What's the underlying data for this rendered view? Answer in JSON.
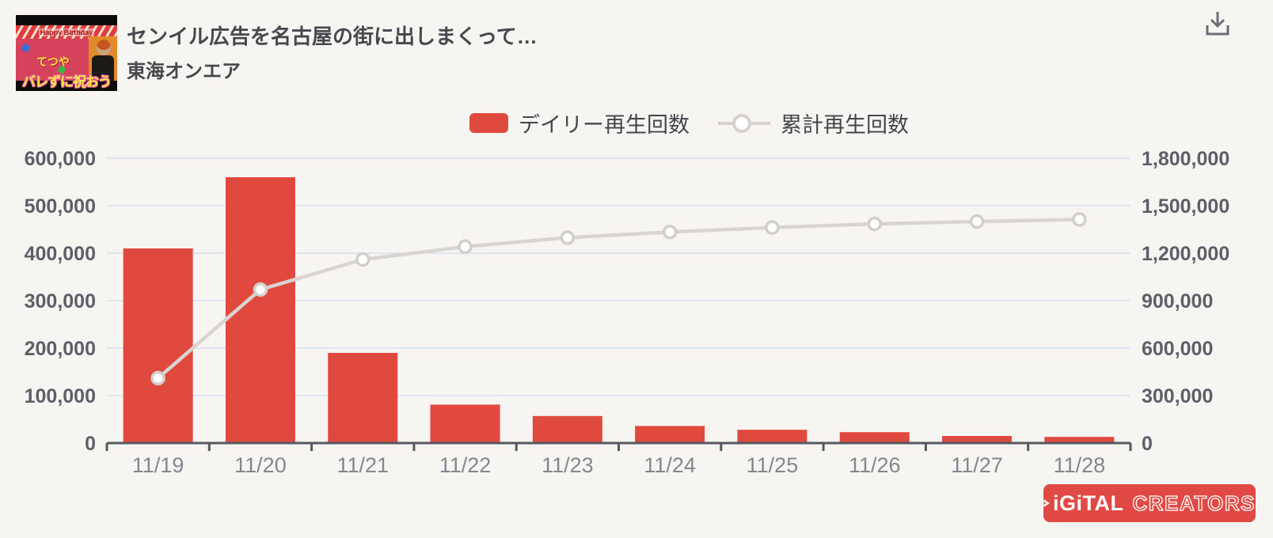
{
  "page": {
    "background": "#f7f5f2"
  },
  "header": {
    "video_title": "センイル広告を名古屋の街に出しまくって…",
    "channel_name": "東海オンエア",
    "thumbnail": {
      "banner_text": "Happy Birthday",
      "name_text": "てつや",
      "overlay_text": "バレずに祝おう"
    },
    "icons": {
      "download": "download-icon"
    }
  },
  "legend": {
    "daily": {
      "label": "デイリー再生回数",
      "color": "#e0493e"
    },
    "cumulative": {
      "label": "累計再生回数",
      "color": "#d8d5d1"
    }
  },
  "chart_data": {
    "type": "bar",
    "categories": [
      "11/19",
      "11/20",
      "11/21",
      "11/22",
      "11/23",
      "11/24",
      "11/25",
      "11/26",
      "11/27",
      "11/28"
    ],
    "series": [
      {
        "name": "デイリー再生回数",
        "type": "bar",
        "axis": "left",
        "color": "#e0493e",
        "values": [
          410000,
          560000,
          190000,
          81000,
          57000,
          36000,
          28000,
          23000,
          15000,
          13000
        ]
      },
      {
        "name": "累計再生回数",
        "type": "line",
        "axis": "right",
        "color": "#d8d5d1",
        "values": [
          410000,
          970000,
          1160000,
          1241000,
          1298000,
          1334000,
          1362000,
          1385000,
          1400000,
          1413000
        ]
      }
    ],
    "left_axis": {
      "min": 0,
      "max": 600000,
      "step": 100000,
      "tick_labels": [
        "0",
        "100,000",
        "200,000",
        "300,000",
        "400,000",
        "500,000",
        "600,000"
      ]
    },
    "right_axis": {
      "min": 0,
      "max": 1800000,
      "step": 300000,
      "tick_labels": [
        "0",
        "300,000",
        "600,000",
        "900,000",
        "1,200,000",
        "1,500,000",
        "1,800,000"
      ]
    },
    "grid": true,
    "legend_position": "top",
    "colors": {
      "gridline": "#e1e5f0",
      "axis_line": "#57575e",
      "y_tick_label": "#5e5e69",
      "x_tick_label": "#85858d",
      "marker_fill": "#ffffff",
      "marker_stroke": "#d2cfcb"
    }
  },
  "footer": {
    "logo_text": "DiGiTAL CREATORS",
    "logo_text_after_mark": "iGiTAL",
    "logo_text_outline": "CREATORS",
    "logo_background": "#e14a44"
  }
}
